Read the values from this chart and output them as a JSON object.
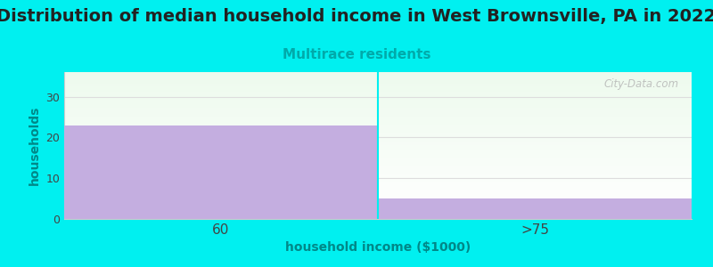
{
  "title": "Distribution of median household income in West Brownsville, PA in 2022",
  "subtitle": "Multirace residents",
  "xlabel": "household income ($1000)",
  "ylabel": "households",
  "categories": [
    "60",
    ">75"
  ],
  "values": [
    23,
    5
  ],
  "bar_color": "#c4aee0",
  "background_color": "#00f0f0",
  "plot_bg_top": "#edfaed",
  "plot_bg_bottom": "#ffffff",
  "title_fontsize": 14,
  "title_color": "#222222",
  "subtitle_color": "#00aaaa",
  "subtitle_fontsize": 11,
  "ylabel_color": "#008888",
  "xlabel_color": "#008888",
  "tick_color": "#444444",
  "ylim": [
    0,
    36
  ],
  "yticks": [
    0,
    10,
    20,
    30
  ],
  "watermark": "City-Data.com",
  "grid_color": "#dddddd"
}
